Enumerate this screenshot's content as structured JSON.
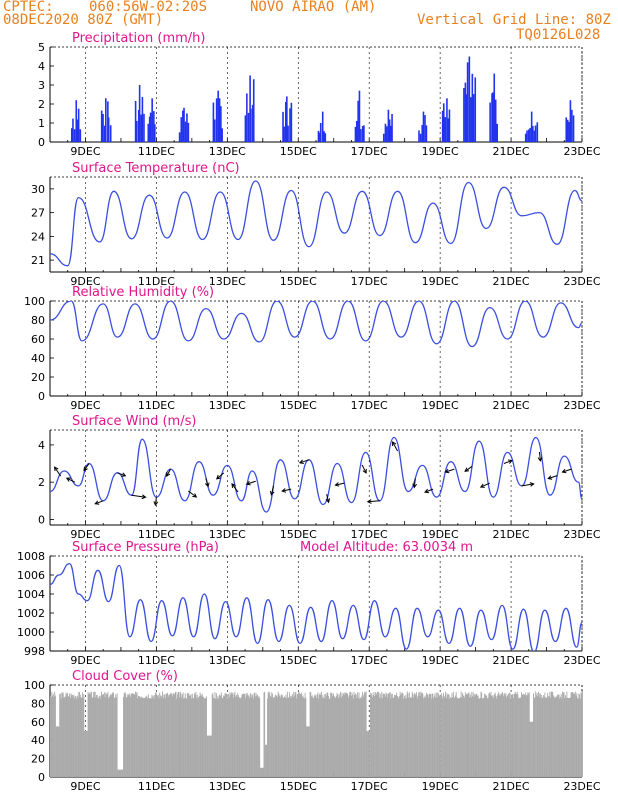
{
  "header": {
    "source": "CPTEC:",
    "coords": "060:56W-02:20S",
    "location": "NOVO AIRAO (AM)",
    "run_time": "08DEC2020 80Z (GMT)",
    "grid_line": "Vertical Grid Line: 80Z",
    "model_code": "TQ0126L028"
  },
  "colors": {
    "header": "#e8801e",
    "title": "#e0168c",
    "series": "#3a4fe0",
    "precip_bar": "#2233ee",
    "cloud_bar": "#aaaaaa",
    "wind_arrow": "#000000"
  },
  "x_axis": {
    "time_range_days": [
      0,
      15
    ],
    "tick_labels": [
      "9DEC",
      "11DEC",
      "13DEC",
      "15DEC",
      "17DEC",
      "19DEC",
      "21DEC",
      "23DEC"
    ],
    "tick_days": [
      1,
      3,
      5,
      7,
      9,
      11,
      13,
      15
    ]
  },
  "chart_data": [
    {
      "type": "bar",
      "name": "precipitation",
      "title": "Precipitation (mm/h)",
      "ylim": [
        0,
        5
      ],
      "yticks": [
        "0",
        "1",
        "2",
        "3",
        "4",
        "5"
      ],
      "bursts": [
        {
          "day": 0.7,
          "peak": 2.2
        },
        {
          "day": 1.55,
          "peak": 2.3
        },
        {
          "day": 2.5,
          "peak": 3.0
        },
        {
          "day": 2.85,
          "peak": 2.3
        },
        {
          "day": 3.75,
          "peak": 1.8
        },
        {
          "day": 4.7,
          "peak": 2.7
        },
        {
          "day": 5.6,
          "peak": 3.5
        },
        {
          "day": 6.65,
          "peak": 2.4
        },
        {
          "day": 7.65,
          "peak": 1.6
        },
        {
          "day": 8.7,
          "peak": 2.7
        },
        {
          "day": 9.5,
          "peak": 1.7
        },
        {
          "day": 10.5,
          "peak": 1.6
        },
        {
          "day": 11.15,
          "peak": 2.3
        },
        {
          "day": 11.75,
          "peak": 4.5
        },
        {
          "day": 12.5,
          "peak": 3.6
        },
        {
          "day": 13.5,
          "peak": 1.6
        },
        {
          "day": 14.65,
          "peak": 2.2
        }
      ]
    },
    {
      "type": "line",
      "name": "surface_temperature",
      "title": "Surface Temperature (nC)",
      "ylim": [
        19.5,
        31.5
      ],
      "yticks": [
        "21",
        "24",
        "27",
        "30"
      ],
      "ytick_values": [
        21,
        24,
        27,
        30
      ],
      "x": [
        0,
        0.5,
        0.8,
        1.4,
        1.8,
        2.3,
        2.8,
        3.3,
        3.8,
        4.3,
        4.8,
        5.3,
        5.8,
        6.3,
        6.8,
        7.3,
        7.8,
        8.3,
        8.8,
        9.3,
        9.8,
        10.3,
        10.8,
        11.3,
        11.8,
        12.3,
        12.8,
        13.3,
        13.8,
        14.3,
        14.8,
        15
      ],
      "values": [
        21.8,
        20.3,
        28.9,
        23.3,
        29.7,
        23.7,
        29.2,
        23.8,
        29.6,
        23.6,
        29.6,
        23.6,
        31.0,
        23.5,
        29.8,
        22.7,
        29.6,
        24.4,
        29.7,
        24.1,
        29.7,
        23.2,
        28.2,
        23.1,
        30.8,
        25.0,
        30.2,
        26.6,
        27.0,
        23.0,
        29.8,
        28.5
      ]
    },
    {
      "type": "line",
      "name": "relative_humidity",
      "title": "Relative Humidity (%)",
      "ylim": [
        0,
        100
      ],
      "yticks": [
        "0",
        "20",
        "40",
        "60",
        "80",
        "100"
      ],
      "ytick_values": [
        0,
        20,
        40,
        60,
        80,
        100
      ],
      "x": [
        0,
        0.6,
        0.9,
        1.5,
        1.9,
        2.4,
        2.9,
        3.4,
        3.9,
        4.4,
        4.9,
        5.4,
        5.9,
        6.4,
        6.9,
        7.4,
        7.9,
        8.4,
        8.9,
        9.4,
        9.9,
        10.4,
        10.9,
        11.4,
        11.9,
        12.4,
        12.9,
        13.4,
        13.9,
        14.4,
        14.9,
        15
      ],
      "values": [
        80,
        100,
        58,
        97,
        62,
        97,
        60,
        100,
        58,
        92,
        60,
        87,
        57,
        100,
        62,
        100,
        60,
        100,
        58,
        100,
        62,
        100,
        55,
        100,
        52,
        93,
        60,
        100,
        62,
        98,
        72,
        77
      ]
    },
    {
      "type": "line",
      "name": "surface_wind",
      "title": "Surface Wind (m/s)",
      "ylim": [
        -0.3,
        4.8
      ],
      "yticks": [
        "0",
        "2",
        "4"
      ],
      "ytick_values": [
        0,
        2,
        4
      ],
      "x": [
        0,
        0.4,
        0.8,
        1.1,
        1.5,
        1.9,
        2.3,
        2.6,
        3.0,
        3.4,
        3.8,
        4.2,
        4.6,
        5.0,
        5.4,
        5.7,
        6.1,
        6.5,
        6.9,
        7.3,
        7.7,
        8.1,
        8.5,
        8.9,
        9.3,
        9.7,
        10.1,
        10.5,
        10.9,
        11.3,
        11.7,
        12.1,
        12.5,
        12.9,
        13.3,
        13.7,
        14.1,
        14.5,
        14.9,
        15
      ],
      "values": [
        1.5,
        2.6,
        1.8,
        3.0,
        1.0,
        2.5,
        1.3,
        4.3,
        1.2,
        2.7,
        1.0,
        3.1,
        1.3,
        2.9,
        1.0,
        2.6,
        0.4,
        3.2,
        1.1,
        3.2,
        0.8,
        3.0,
        0.9,
        3.6,
        1.0,
        4.4,
        1.5,
        2.9,
        1.2,
        3.1,
        1.5,
        4.2,
        1.2,
        3.6,
        1.8,
        4.4,
        1.3,
        3.4,
        2.0,
        1.1
      ],
      "arrows": [
        {
          "day": 0.3,
          "dx": -6,
          "dy": -9
        },
        {
          "day": 0.7,
          "dx": -8,
          "dy": -4
        },
        {
          "day": 1.1,
          "dx": -5,
          "dy": 7
        },
        {
          "day": 1.5,
          "dx": -8,
          "dy": 3
        },
        {
          "day": 1.9,
          "dx": 8,
          "dy": 3
        },
        {
          "day": 2.3,
          "dx": 14,
          "dy": 2
        },
        {
          "day": 3.0,
          "dx": -1,
          "dy": 8
        },
        {
          "day": 3.4,
          "dx": -4,
          "dy": 7
        },
        {
          "day": 3.9,
          "dx": 8,
          "dy": 6
        },
        {
          "day": 4.4,
          "dx": 2,
          "dy": 8
        },
        {
          "day": 4.9,
          "dx": -7,
          "dy": 6
        },
        {
          "day": 5.3,
          "dx": -6,
          "dy": -8
        },
        {
          "day": 5.8,
          "dx": -9,
          "dy": 3
        },
        {
          "day": 6.3,
          "dx": -2,
          "dy": 9
        },
        {
          "day": 6.8,
          "dx": -9,
          "dy": 2
        },
        {
          "day": 7.3,
          "dx": -9,
          "dy": 3
        },
        {
          "day": 7.8,
          "dx": 2,
          "dy": 8
        },
        {
          "day": 8.3,
          "dx": -9,
          "dy": 2
        },
        {
          "day": 8.8,
          "dx": 4,
          "dy": 8
        },
        {
          "day": 9.3,
          "dx": -12,
          "dy": 1
        },
        {
          "day": 9.8,
          "dx": -5,
          "dy": -9
        },
        {
          "day": 10.3,
          "dx": -1,
          "dy": 9
        },
        {
          "day": 10.8,
          "dx": -8,
          "dy": 3
        },
        {
          "day": 11.4,
          "dx": -9,
          "dy": 3
        },
        {
          "day": 11.9,
          "dx": -7,
          "dy": 5
        },
        {
          "day": 12.4,
          "dx": -9,
          "dy": 4
        },
        {
          "day": 12.8,
          "dx": 8,
          "dy": -3
        },
        {
          "day": 13.3,
          "dx": 12,
          "dy": -2
        },
        {
          "day": 13.8,
          "dx": 1,
          "dy": 9
        },
        {
          "day": 14.3,
          "dx": -9,
          "dy": 3
        },
        {
          "day": 14.7,
          "dx": -9,
          "dy": 3
        }
      ]
    },
    {
      "type": "line",
      "name": "surface_pressure",
      "title": "Surface Pressure (hPa)",
      "annotation": "Model Altitude: 63.0034 m",
      "ylim": [
        998,
        1008
      ],
      "yticks": [
        "998",
        "1000",
        "1002",
        "1004",
        "1006",
        "1008"
      ],
      "ytick_values": [
        998,
        1000,
        1002,
        1004,
        1006,
        1008
      ],
      "x": [
        0,
        0.25,
        0.55,
        0.8,
        1.05,
        1.35,
        1.65,
        1.95,
        2.25,
        2.55,
        2.85,
        3.15,
        3.45,
        3.75,
        4.05,
        4.35,
        4.65,
        4.95,
        5.25,
        5.55,
        5.85,
        6.15,
        6.45,
        6.75,
        7.05,
        7.35,
        7.65,
        7.95,
        8.25,
        8.55,
        8.85,
        9.15,
        9.45,
        9.75,
        10.05,
        10.35,
        10.65,
        10.95,
        11.25,
        11.55,
        11.85,
        12.15,
        12.45,
        12.75,
        13.05,
        13.35,
        13.65,
        13.95,
        14.25,
        14.55,
        14.85,
        15
      ],
      "values": [
        1005,
        1006,
        1007.2,
        1004,
        1003.3,
        1006.5,
        1003.2,
        1007,
        999.5,
        1003.4,
        999,
        1003.3,
        999.6,
        1003.6,
        999.5,
        1004,
        999.3,
        1003.2,
        999.5,
        1003.6,
        998.8,
        1003.4,
        999,
        1002.8,
        998.8,
        1002.6,
        999,
        1003.3,
        999.3,
        1002.8,
        999.2,
        1003.3,
        999.5,
        1002.5,
        998.2,
        1002.5,
        999.5,
        1002.3,
        998.8,
        1002.5,
        998.5,
        1002.3,
        999.2,
        1002.8,
        998.2,
        1002.4,
        997.9,
        1002.3,
        999,
        1002.5,
        998.4,
        1001
      ]
    },
    {
      "type": "bar",
      "name": "cloud_cover",
      "title": "Cloud Cover (%)",
      "ylim": [
        0,
        100
      ],
      "yticks": [
        "0",
        "20",
        "40",
        "60",
        "80",
        "100"
      ],
      "base_level": 88,
      "low_spans": [
        {
          "day_start": 0.15,
          "day_end": 0.25,
          "level": 55
        },
        {
          "day_start": 0.95,
          "day_end": 1.05,
          "level": 50
        },
        {
          "day_start": 1.9,
          "day_end": 2.05,
          "level": 8
        },
        {
          "day_start": 4.4,
          "day_end": 4.55,
          "level": 45
        },
        {
          "day_start": 5.9,
          "day_end": 6.0,
          "level": 10
        },
        {
          "day_start": 6.05,
          "day_end": 6.1,
          "level": 35
        },
        {
          "day_start": 7.2,
          "day_end": 7.3,
          "level": 55
        },
        {
          "day_start": 8.9,
          "day_end": 9.0,
          "level": 50
        },
        {
          "day_start": 13.5,
          "day_end": 13.6,
          "level": 60
        }
      ]
    }
  ]
}
